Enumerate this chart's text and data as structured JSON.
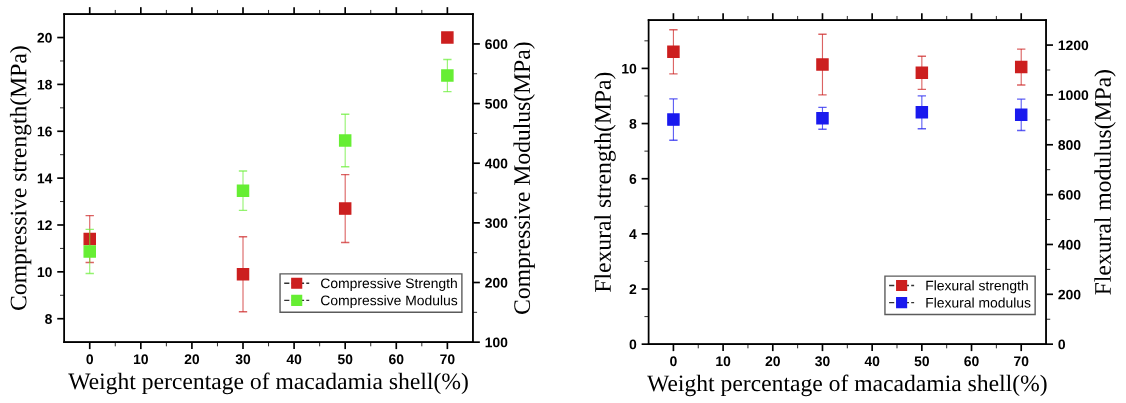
{
  "chart_data": [
    {
      "type": "scatter",
      "xlabel": "Weight percentage of macadamia shell(%)",
      "ylabel": "Compressive strength(MPa)",
      "y2label": "Compressive Modulus(MPa)",
      "marker": "square",
      "legend": "bottom right",
      "grid": false,
      "xlim": [
        -5,
        75
      ],
      "xticks": [
        0,
        {
          "value": 5,
          "label": null
        },
        10,
        {
          "value": 15,
          "label": null
        },
        20,
        {
          "value": 25,
          "label": null
        },
        30,
        {
          "value": 35,
          "label": null
        },
        40,
        {
          "value": 45,
          "label": null
        },
        50,
        {
          "value": 55,
          "label": null
        },
        60,
        {
          "value": 65,
          "label": null
        },
        70
      ],
      "ylim": [
        7,
        21
      ],
      "yticks": [
        8,
        {
          "value": 9,
          "label": null
        },
        10,
        {
          "value": 11,
          "label": null
        },
        12,
        {
          "value": 13,
          "label": null
        },
        14,
        {
          "value": 15,
          "label": null
        },
        16,
        {
          "value": 17,
          "label": null
        },
        18,
        {
          "value": 19,
          "label": null
        },
        20
      ],
      "y2lim": [
        100,
        650
      ],
      "y2ticks": [
        100,
        {
          "value": 150,
          "label": null
        },
        200,
        {
          "value": 250,
          "label": null
        },
        300,
        {
          "value": 350,
          "label": null
        },
        400,
        {
          "value": 450,
          "label": null
        },
        500,
        {
          "value": 550,
          "label": null
        },
        600
      ],
      "x": [
        0,
        30,
        50,
        70
      ],
      "series": [
        {
          "name": "Compressive Strength",
          "color": "#cc1f1f",
          "values": [
            11.4,
            9.9,
            12.7,
            20.0
          ],
          "errors": [
            1.0,
            1.6,
            1.45,
            null
          ]
        },
        {
          "name": "Compressive Modulus",
          "color": "#66ee33",
          "axis": "y2",
          "values": [
            252,
            354,
            438,
            547
          ],
          "errors": [
            37,
            33,
            44,
            27
          ]
        }
      ]
    },
    {
      "type": "scatter",
      "xlabel": "Weight percentage of macadamia shell(%)",
      "ylabel": "Flexural strength(MPa)",
      "y2label": "Flexural modulus(MPa)",
      "marker": "square",
      "legend": "bottom right",
      "grid": false,
      "xlim": [
        -5,
        75
      ],
      "xticks": [
        0,
        {
          "value": 5,
          "label": null
        },
        10,
        {
          "value": 15,
          "label": null
        },
        20,
        {
          "value": 25,
          "label": null
        },
        30,
        {
          "value": 35,
          "label": null
        },
        40,
        {
          "value": 45,
          "label": null
        },
        50,
        {
          "value": 55,
          "label": null
        },
        60,
        {
          "value": 65,
          "label": null
        },
        70
      ],
      "ylim": [
        0,
        11.75
      ],
      "yticks": [
        0,
        {
          "value": 1,
          "label": null
        },
        2,
        {
          "value": 3,
          "label": null
        },
        4,
        {
          "value": 5,
          "label": null
        },
        6,
        {
          "value": 7,
          "label": null
        },
        8,
        {
          "value": 9,
          "label": null
        },
        10,
        {
          "value": 11,
          "label": null
        }
      ],
      "y2lim": [
        0,
        1300
      ],
      "y2ticks": [
        0,
        {
          "value": 100,
          "label": null
        },
        200,
        {
          "value": 300,
          "label": null
        },
        400,
        {
          "value": 500,
          "label": null
        },
        600,
        {
          "value": 700,
          "label": null
        },
        800,
        {
          "value": 900,
          "label": null
        },
        1000,
        {
          "value": 1100,
          "label": null
        },
        1200
      ],
      "x": [
        0,
        30,
        50,
        70
      ],
      "series": [
        {
          "name": "Flexural strength",
          "color": "#cc1f1f",
          "values": [
            10.6,
            10.14,
            9.84,
            10.05
          ],
          "errors": [
            0.8,
            1.1,
            0.6,
            0.65
          ]
        },
        {
          "name": "Flexural modulus",
          "color": "#1a1aee",
          "axis": "y2",
          "values": [
            901,
            906,
            930,
            920
          ],
          "errors": [
            83,
            44,
            66,
            63
          ]
        }
      ]
    }
  ]
}
